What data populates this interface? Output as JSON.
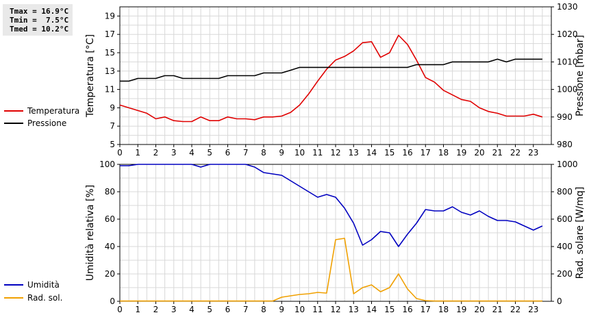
{
  "stats": {
    "tmax": "Tmax = 16.9°C",
    "tmin": "Tmin =  7.5°C",
    "tmed": "Tmed = 10.2°C"
  },
  "legend_top": [
    {
      "label": "Temperatura",
      "color": "#e00000"
    },
    {
      "label": "Pressione",
      "color": "#000000"
    }
  ],
  "legend_bottom": [
    {
      "label": "Umidità",
      "color": "#0000c0"
    },
    {
      "label": "Rad. sol.",
      "color": "#f0a000"
    }
  ],
  "chart_data": [
    {
      "type": "line",
      "xlabel": "",
      "ylabel": "Temperatura [°C]",
      "y2label": "Pressione [mbar]",
      "xlim": [
        0,
        24
      ],
      "ylim": [
        5,
        20
      ],
      "y2lim": [
        980,
        1030
      ],
      "x_ticks": [
        "0",
        "1",
        "2",
        "3",
        "4",
        "5",
        "6",
        "7",
        "8",
        "9",
        "10",
        "11",
        "12",
        "13",
        "14",
        "15",
        "16",
        "17",
        "18",
        "19",
        "20",
        "21",
        "22",
        "23"
      ],
      "y_ticks": [
        "5",
        "7",
        "9",
        "11",
        "13",
        "15",
        "17",
        "19"
      ],
      "y2_ticks": [
        "980",
        "990",
        "1000",
        "1010",
        "1020",
        "1030"
      ],
      "grid": true,
      "series": [
        {
          "name": "Temperatura",
          "color": "#e00000",
          "axis": "left",
          "x": [
            0,
            0.5,
            1,
            1.5,
            2,
            2.5,
            3,
            3.5,
            4,
            4.5,
            5,
            5.5,
            6,
            6.5,
            7,
            7.5,
            8,
            8.5,
            9,
            9.5,
            10,
            10.5,
            11,
            11.5,
            12,
            12.5,
            13,
            13.5,
            14,
            14.5,
            15,
            15.5,
            16,
            16.5,
            17,
            17.5,
            18,
            18.5,
            19,
            19.5,
            20,
            20.5,
            21,
            21.5,
            22,
            22.5,
            23,
            23.5
          ],
          "values": [
            9.3,
            9.0,
            8.7,
            8.4,
            7.8,
            8.0,
            7.6,
            7.5,
            7.5,
            8.0,
            7.6,
            7.6,
            8.0,
            7.8,
            7.8,
            7.7,
            8.0,
            8.0,
            8.1,
            8.5,
            9.3,
            10.5,
            11.9,
            13.2,
            14.2,
            14.6,
            15.2,
            16.1,
            16.2,
            14.5,
            15.0,
            16.9,
            15.9,
            14.2,
            12.3,
            11.8,
            10.9,
            10.4,
            9.9,
            9.7,
            9.0,
            8.6,
            8.4,
            8.1,
            8.1,
            8.1,
            8.3,
            8.0
          ]
        },
        {
          "name": "Pressione",
          "color": "#000000",
          "axis": "right",
          "x": [
            0,
            0.5,
            1,
            1.5,
            2,
            2.5,
            3,
            3.5,
            4,
            4.5,
            5,
            5.5,
            6,
            6.5,
            7,
            7.5,
            8,
            8.5,
            9,
            9.5,
            10,
            10.5,
            11,
            11.5,
            12,
            12.5,
            13,
            13.5,
            14,
            14.5,
            15,
            15.5,
            16,
            16.5,
            17,
            17.5,
            18,
            18.5,
            19,
            19.5,
            20,
            20.5,
            21,
            21.5,
            22,
            22.5,
            23,
            23.5
          ],
          "values": [
            1003,
            1003,
            1004,
            1004,
            1004,
            1005,
            1005,
            1004,
            1004,
            1004,
            1004,
            1004,
            1005,
            1005,
            1005,
            1005,
            1006,
            1006,
            1006,
            1007,
            1008,
            1008,
            1008,
            1008,
            1008,
            1008,
            1008,
            1008,
            1008,
            1008,
            1008,
            1008,
            1008,
            1009,
            1009,
            1009,
            1009,
            1010,
            1010,
            1010,
            1010,
            1010,
            1011,
            1010,
            1011,
            1011,
            1011,
            1011
          ]
        }
      ]
    },
    {
      "type": "line",
      "xlabel": "",
      "ylabel": "Umidità relativa [%]",
      "y2label": "Rad. solare [W/mq]",
      "xlim": [
        0,
        24
      ],
      "ylim": [
        0,
        100
      ],
      "y2lim": [
        0,
        1000
      ],
      "x_ticks": [
        "0",
        "1",
        "2",
        "3",
        "4",
        "5",
        "6",
        "7",
        "8",
        "9",
        "10",
        "11",
        "12",
        "13",
        "14",
        "15",
        "16",
        "17",
        "18",
        "19",
        "20",
        "21",
        "22",
        "23"
      ],
      "y_ticks": [
        "0",
        "20",
        "40",
        "60",
        "80",
        "100"
      ],
      "y2_ticks": [
        "0",
        "200",
        "400",
        "600",
        "800",
        "1000"
      ],
      "grid": true,
      "series": [
        {
          "name": "Umidità",
          "color": "#0000c0",
          "axis": "left",
          "x": [
            0,
            0.5,
            1,
            1.5,
            2,
            2.5,
            3,
            3.5,
            4,
            4.5,
            5,
            5.5,
            6,
            6.5,
            7,
            7.5,
            8,
            8.5,
            9,
            9.5,
            10,
            10.5,
            11,
            11.5,
            12,
            12.5,
            13,
            13.5,
            14,
            14.5,
            15,
            15.5,
            16,
            16.5,
            17,
            17.5,
            18,
            18.5,
            19,
            19.5,
            20,
            20.5,
            21,
            21.5,
            22,
            22.5,
            23,
            23.5
          ],
          "values": [
            99,
            99,
            100,
            100,
            100,
            100,
            100,
            100,
            100,
            98,
            100,
            100,
            100,
            100,
            100,
            98,
            94,
            93,
            92,
            88,
            84,
            80,
            76,
            78,
            76,
            68,
            57,
            41,
            45,
            51,
            50,
            40,
            49,
            57,
            67,
            66,
            66,
            69,
            65,
            63,
            66,
            62,
            59,
            59,
            58,
            55,
            52,
            55
          ]
        },
        {
          "name": "Rad. sol.",
          "color": "#f0a000",
          "axis": "right",
          "x": [
            0,
            0.5,
            1,
            1.5,
            2,
            2.5,
            3,
            3.5,
            4,
            4.5,
            5,
            5.5,
            6,
            6.5,
            7,
            7.5,
            8,
            8.5,
            9,
            9.5,
            10,
            10.5,
            11,
            11.5,
            12,
            12.5,
            13,
            13.5,
            14,
            14.5,
            15,
            15.5,
            16,
            16.5,
            17,
            17.5,
            18,
            18.5,
            19,
            19.5,
            20,
            20.5,
            21,
            21.5,
            22,
            22.5,
            23,
            23.5
          ],
          "values": [
            2,
            2,
            2,
            2,
            2,
            2,
            2,
            2,
            2,
            2,
            2,
            2,
            2,
            2,
            2,
            2,
            2,
            2,
            30,
            40,
            50,
            55,
            65,
            60,
            450,
            460,
            55,
            100,
            120,
            70,
            100,
            200,
            90,
            20,
            5,
            2,
            2,
            2,
            2,
            2,
            2,
            2,
            2,
            2,
            2,
            2,
            2,
            2
          ]
        }
      ]
    }
  ]
}
